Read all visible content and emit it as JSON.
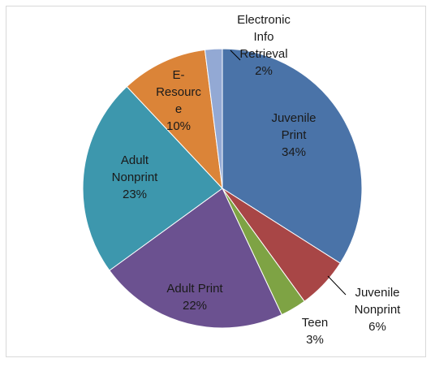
{
  "chart_data": {
    "type": "pie",
    "title": "",
    "legend": "none",
    "slices": [
      {
        "label_lines": [
          "Juvenile",
          "Print"
        ],
        "value": 34,
        "value_label": "34%",
        "color": "#4a73a8"
      },
      {
        "label_lines": [
          "Juvenile",
          "Nonprint"
        ],
        "value": 6,
        "value_label": "6%",
        "color": "#a84646"
      },
      {
        "label_lines": [
          "Teen"
        ],
        "value": 3,
        "value_label": "3%",
        "color": "#7ea344"
      },
      {
        "label_lines": [
          "Adult Print"
        ],
        "value": 22,
        "value_label": "22%",
        "color": "#6b5190"
      },
      {
        "label_lines": [
          "Adult",
          "Nonprint"
        ],
        "value": 23,
        "value_label": "23%",
        "color": "#3d97ad"
      },
      {
        "label_lines": [
          "E-",
          "Resourc",
          "e"
        ],
        "value": 10,
        "value_label": "10%",
        "color": "#db8438"
      },
      {
        "label_lines": [
          "Electronic",
          "Info",
          "Retrieval"
        ],
        "value": 2,
        "value_label": "2%",
        "color": "#93a9d4"
      }
    ]
  }
}
